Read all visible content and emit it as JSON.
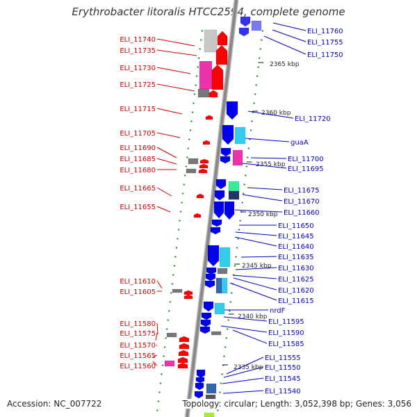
{
  "title": "Erythrobacter litoralis HTCC2594, complete genome",
  "accession_label": "Accession: NC_007722",
  "summary_label": "Topology: circular; Length: 3,052,398 bp; Genes: 3,056",
  "colors": {
    "left_label": "#cc0000",
    "right_label": "#0000bb",
    "backbone": "#888888",
    "tick": "#228b22",
    "red_gene": "#ff0000",
    "blue_gene": "#0000ee"
  },
  "scale_labels": [
    "2365 kbp",
    "2360 kbp",
    "2355 kbp",
    "2350 kbp",
    "2345 kbp",
    "2340 kbp",
    "2335 kbp"
  ],
  "left_genes": [
    "ELI_11740",
    "ELI_11735",
    "ELI_11730",
    "ELI_11725",
    "ELI_11715",
    "ELI_11705",
    "ELI_11690",
    "ELI_11685",
    "ELI_11680",
    "ELI_11665",
    "ELI_11655",
    "ELI_11610",
    "ELI_11605",
    "ELI_11580",
    "ELI_11575",
    "ELI_11570",
    "ELI_11565",
    "ELI_11560"
  ],
  "right_genes": [
    "ELI_11760",
    "ELI_11755",
    "ELI_11750",
    "ELI_11720",
    "guaA",
    "ELI_11700",
    "ELI_11695",
    "ELI_11675",
    "ELI_11670",
    "ELI_11660",
    "ELI_11650",
    "ELI_11645",
    "ELI_11640",
    "ELI_11635",
    "ELI_11630",
    "ELI_11625",
    "ELI_11620",
    "ELI_11615",
    "nrdF",
    "ELI_11595",
    "ELI_11590",
    "ELI_11585",
    "ELI_11555",
    "ELI_11550",
    "ELI_11545",
    "ELI_11540"
  ]
}
